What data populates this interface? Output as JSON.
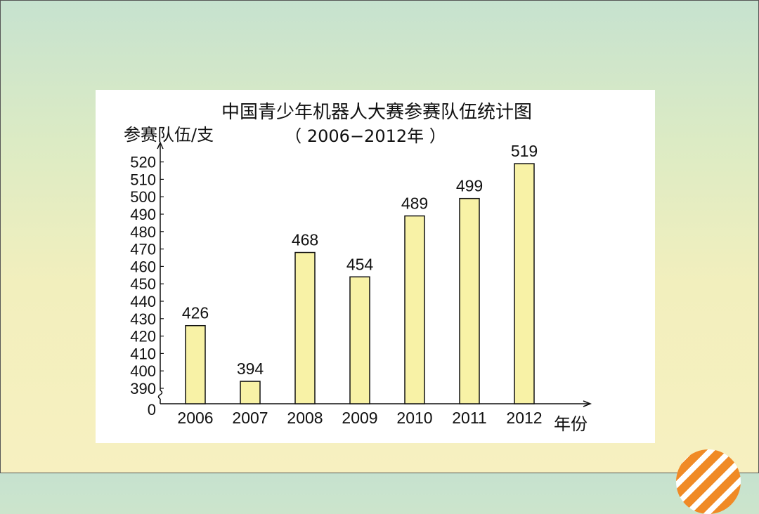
{
  "chart_data": {
    "type": "bar",
    "title": "中国青少年机器人大赛参赛队伍统计图",
    "subtitle": "（ 2006−2012年 ）",
    "ylabel": "参赛队伍/支",
    "xlabel": "年份",
    "categories": [
      "2006",
      "2007",
      "2008",
      "2009",
      "2010",
      "2011",
      "2012"
    ],
    "values": [
      426,
      394,
      468,
      454,
      489,
      499,
      519
    ],
    "yticks": [
      520,
      510,
      500,
      490,
      480,
      470,
      460,
      450,
      440,
      430,
      420,
      410,
      400,
      390
    ],
    "ylim": [
      390,
      520
    ],
    "y_axis_break": true,
    "y_zero_label": "0",
    "bar_color": "#f8f2a6",
    "bar_edge_color": "#111111"
  }
}
